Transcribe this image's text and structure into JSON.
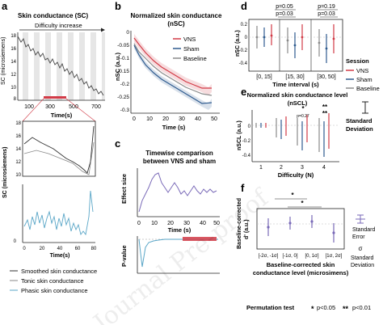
{
  "panel_letters": {
    "a": "a",
    "b": "b",
    "c": "c",
    "d": "d",
    "e": "e",
    "f": "f"
  },
  "colors": {
    "vns": "#d23b47",
    "sham": "#2f5b8f",
    "baseline": "#8a8a8a",
    "phasic": "#5aa6c7",
    "purple": "#7a6ab8"
  },
  "panel_a": {
    "title": "Skin conductance (SC)",
    "difficulty": "Difficulty increase",
    "ylabel": "SC (microsiemens)",
    "xlabel": "Time(s)",
    "y_ticks": [
      "18",
      "16",
      "14",
      "12",
      "10",
      "8"
    ],
    "x_ticks": [
      "100",
      "300",
      "500",
      "700"
    ],
    "zoom_xlabel": "Time(s)",
    "zoom_ylabel": "SC (microsiemens)",
    "zoom_yticks": [
      "18",
      "16",
      "14",
      "12",
      "10"
    ],
    "zoom_xticks": [
      "0",
      "20",
      "40",
      "60",
      "80"
    ],
    "phasic_ylabel": "SC (microsiemens)",
    "legend": [
      "Smoothed skin conductance",
      "Tonic skin conductance",
      "Phasic skin conductance"
    ]
  },
  "panel_b": {
    "title": "Normalized skin conductance",
    "subtitle": "(nSC)",
    "ylabel": "nSC (a.u.)",
    "xlabel": "Time (s)",
    "y_ticks": [
      "0",
      "-0.05",
      "-0.1",
      "-0.15",
      "-0.2",
      "-0.25",
      "-0.3"
    ],
    "x_ticks": [
      "0",
      "10",
      "20",
      "30",
      "40",
      "50"
    ],
    "legend": [
      "VNS",
      "Sham",
      "Baseline"
    ]
  },
  "panel_c": {
    "title": "Timewise comparison",
    "subtitle": "between VNS and sham",
    "ylabel_top": "Effect size",
    "ylabel_bottom": "P-value",
    "xlabel": "Time (s)",
    "x_ticks": [
      "0",
      "10",
      "20",
      "30",
      "40",
      "50"
    ]
  },
  "panel_d": {
    "ylabel": "nSC (a.u.)",
    "xlabel": "Time interval (s)",
    "groups": [
      "[0, 15]",
      "[15, 30]",
      "[30, 50]"
    ],
    "pvals": [
      {
        "top": "p=0.05",
        "bottom": "p=0.03"
      },
      {
        "top": "p=0.19",
        "bottom": "p=0.03"
      }
    ],
    "y_ticks": [
      "0.2",
      "0",
      "-0.2",
      "-0.4"
    ],
    "legend_title": "Session",
    "legend": [
      "VNS",
      "Sham",
      "Baseline"
    ]
  },
  "panel_e": {
    "title": "Normalized skin conductance level",
    "subtitle": "(nSCL)",
    "ylabel": "nSCL (a.u.)",
    "xlabel": "Difficulty (N)",
    "x_ticks": [
      "1",
      "2",
      "3",
      "4"
    ],
    "y_ticks": [
      "0",
      "-0.2",
      "-0.4"
    ],
    "sig": [
      "*",
      "**",
      "**"
    ],
    "p_small": "p=0.27",
    "sd_label": [
      "Standard",
      "Deviation"
    ]
  },
  "panel_f": {
    "ylabel": "Baseline-corrected",
    "ylabel2": "d' (a.u.)",
    "xlabel1": "Baseline-corrected skin",
    "xlabel2": "conductance level (microsimens)",
    "groups": [
      "[-2σ, -1σ]",
      "[-1σ, 0]",
      "[0, 1σ]",
      "[1σ, 2σ]"
    ],
    "sig": [
      "*",
      "*"
    ],
    "legend_se": [
      "Standard",
      "Error"
    ],
    "legend_sd": [
      "Standard",
      "Deviation"
    ],
    "sigma": "σ"
  },
  "footer": {
    "label": "Permutation test",
    "p05": "p<0.05",
    "p01": "p<0.01",
    "star1": "*",
    "star2": "**"
  },
  "watermark": "Journal Pre-proof"
}
